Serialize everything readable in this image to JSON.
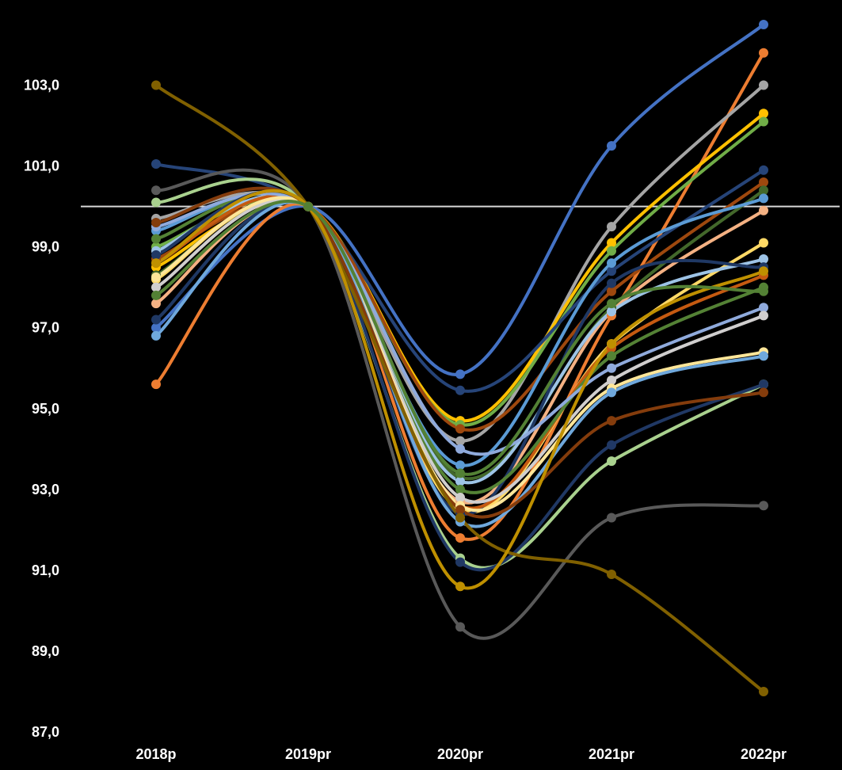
{
  "chart_data": {
    "type": "line",
    "categories": [
      "2018p",
      "2019pr",
      "2020pr",
      "2021pr",
      "2022pr"
    ],
    "y_ticks": [
      "87,0",
      "89,0",
      "91,0",
      "93,0",
      "95,0",
      "97,0",
      "99,0",
      "101,0",
      "103,0"
    ],
    "ylim": [
      87.0,
      104.5
    ],
    "reference_line": 100.0,
    "grid": false,
    "legend": "none",
    "background": "#000000",
    "series": [
      {
        "color": "#4472C4",
        "values": [
          97.0,
          100.0,
          95.85,
          101.5,
          104.5
        ]
      },
      {
        "color": "#ED7D31",
        "values": [
          95.6,
          100.0,
          91.8,
          97.3,
          103.8
        ]
      },
      {
        "color": "#A5A5A5",
        "values": [
          99.7,
          100.0,
          94.2,
          99.5,
          103.0
        ]
      },
      {
        "color": "#FFC000",
        "values": [
          98.5,
          100.0,
          94.7,
          99.1,
          102.3
        ]
      },
      {
        "color": "#70AD47",
        "values": [
          99.0,
          100.0,
          94.6,
          98.9,
          102.1
        ]
      },
      {
        "color": "#264478",
        "values": [
          101.05,
          100.0,
          95.45,
          98.4,
          100.9
        ]
      },
      {
        "color": "#9E480E",
        "values": [
          98.7,
          100.0,
          94.5,
          97.9,
          100.6
        ]
      },
      {
        "color": "#43682B",
        "values": [
          98.3,
          100.0,
          93.3,
          97.5,
          100.4
        ]
      },
      {
        "color": "#5B9BD5",
        "values": [
          99.4,
          100.0,
          93.6,
          98.6,
          100.2
        ]
      },
      {
        "color": "#F4B183",
        "values": [
          97.6,
          100.0,
          92.7,
          97.4,
          99.9
        ]
      },
      {
        "color": "#FFD966",
        "values": [
          98.2,
          100.0,
          92.5,
          96.6,
          99.1
        ]
      },
      {
        "color": "#9DC3E6",
        "values": [
          98.9,
          100.0,
          93.2,
          97.4,
          98.7
        ]
      },
      {
        "color": "#1F3864",
        "values": [
          97.2,
          100.0,
          92.4,
          98.1,
          98.5
        ]
      },
      {
        "color": "#C55A11",
        "values": [
          98.6,
          100.0,
          92.6,
          96.5,
          98.3
        ]
      },
      {
        "color": "#548235",
        "values": [
          99.2,
          100.0,
          93.0,
          96.3,
          98.0
        ]
      },
      {
        "color": "#8FAADC",
        "values": [
          99.5,
          100.0,
          94.0,
          96.0,
          97.5
        ]
      },
      {
        "color": "#D0CECE",
        "values": [
          98.0,
          100.0,
          92.8,
          95.7,
          97.3
        ]
      },
      {
        "color": "#FFE699",
        "values": [
          98.25,
          100.0,
          92.6,
          95.5,
          96.4
        ]
      },
      {
        "color": "#6FA8DC",
        "values": [
          96.8,
          100.0,
          92.2,
          95.4,
          96.3
        ]
      },
      {
        "color": "#A9D18E",
        "values": [
          100.1,
          100.0,
          91.3,
          93.7,
          95.6
        ]
      },
      {
        "color": "#203864",
        "values": [
          98.8,
          100.0,
          91.2,
          94.1,
          95.6
        ]
      },
      {
        "color": "#843C0C",
        "values": [
          99.6,
          100.0,
          92.5,
          94.7,
          95.4
        ]
      },
      {
        "color": "#595959",
        "values": [
          100.4,
          100.0,
          89.6,
          92.3,
          92.6
        ]
      },
      {
        "color": "#806000",
        "values": [
          103.0,
          100.0,
          92.3,
          90.9,
          88.0
        ]
      },
      {
        "color": "#BF9000",
        "values": [
          98.6,
          100.0,
          90.6,
          96.6,
          98.4
        ]
      },
      {
        "color": "#538135",
        "values": [
          97.8,
          100.0,
          93.4,
          97.6,
          97.9
        ]
      }
    ]
  }
}
